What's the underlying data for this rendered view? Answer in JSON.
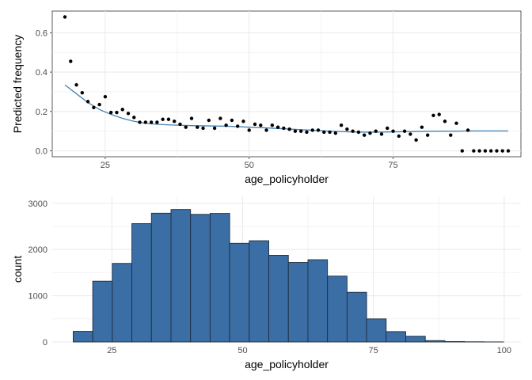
{
  "chart_data": [
    {
      "type": "scatter",
      "xlabel": "age_policyholder",
      "ylabel": "Predicted frequency",
      "xlim": [
        15.8,
        97.2
      ],
      "ylim": [
        -0.03,
        0.71
      ],
      "xticks": [
        25,
        50,
        75
      ],
      "yticks": [
        0.0,
        0.2,
        0.4,
        0.6
      ],
      "grid": true,
      "panel_border": true,
      "colors": {
        "points": "#000000",
        "trend": "#4682b4",
        "grid": "#ebebeb"
      },
      "points": {
        "x": [
          18,
          19,
          20,
          21,
          22,
          23,
          24,
          25,
          26,
          27,
          28,
          29,
          30,
          31,
          32,
          33,
          34,
          35,
          36,
          37,
          38,
          39,
          40,
          41,
          42,
          43,
          44,
          45,
          46,
          47,
          48,
          49,
          50,
          51,
          52,
          53,
          54,
          55,
          56,
          57,
          58,
          59,
          60,
          61,
          62,
          63,
          64,
          65,
          66,
          67,
          68,
          69,
          70,
          71,
          72,
          73,
          74,
          75,
          76,
          77,
          78,
          79,
          80,
          81,
          82,
          83,
          84,
          85,
          86,
          87,
          88,
          89,
          90,
          91,
          92,
          93,
          94,
          95
        ],
        "y": [
          0.68,
          0.455,
          0.335,
          0.295,
          0.25,
          0.22,
          0.235,
          0.275,
          0.195,
          0.195,
          0.21,
          0.19,
          0.17,
          0.145,
          0.145,
          0.145,
          0.145,
          0.16,
          0.16,
          0.15,
          0.135,
          0.12,
          0.165,
          0.12,
          0.115,
          0.155,
          0.115,
          0.165,
          0.13,
          0.155,
          0.125,
          0.15,
          0.105,
          0.135,
          0.13,
          0.105,
          0.13,
          0.12,
          0.115,
          0.11,
          0.1,
          0.1,
          0.095,
          0.105,
          0.105,
          0.095,
          0.095,
          0.09,
          0.13,
          0.11,
          0.1,
          0.095,
          0.08,
          0.09,
          0.1,
          0.085,
          0.115,
          0.1,
          0.075,
          0.1,
          0.085,
          0.055,
          0.12,
          0.08,
          0.18,
          0.185,
          0.15,
          0.08,
          0.14,
          0.0,
          0.105,
          0.0,
          0.0,
          0.0,
          0.0,
          0.0,
          0.0,
          0.0
        ]
      },
      "trend": {
        "x": [
          18,
          20,
          22,
          24,
          26,
          28,
          30,
          32,
          34,
          36,
          38,
          40,
          42,
          44,
          46,
          48,
          50,
          52,
          54,
          56,
          58,
          60,
          62,
          64,
          66,
          68,
          70,
          72,
          74,
          76,
          78,
          80,
          82,
          84,
          86,
          88,
          90,
          92,
          94,
          95
        ],
        "y": [
          0.335,
          0.29,
          0.245,
          0.21,
          0.185,
          0.165,
          0.15,
          0.14,
          0.135,
          0.132,
          0.13,
          0.128,
          0.127,
          0.126,
          0.125,
          0.123,
          0.12,
          0.118,
          0.115,
          0.112,
          0.109,
          0.106,
          0.103,
          0.1,
          0.098,
          0.096,
          0.095,
          0.095,
          0.096,
          0.097,
          0.098,
          0.099,
          0.1,
          0.1,
          0.1,
          0.101,
          0.101,
          0.101,
          0.101,
          0.101
        ]
      }
    },
    {
      "type": "bar",
      "xlabel": "age_policyholder",
      "ylabel": "count",
      "xlim": [
        13.6,
        103.2
      ],
      "ylim": [
        0,
        3150
      ],
      "xticks": [
        25,
        50,
        75,
        100
      ],
      "yticks": [
        0,
        1000,
        2000,
        3000
      ],
      "grid": true,
      "panel_border": false,
      "colors": {
        "fill": "#3b6ea5",
        "outline": "#1f2e40",
        "grid": "#ebebeb"
      },
      "bin_width": 3.74,
      "bins": {
        "start": [
          17.6,
          21.34,
          25.08,
          28.82,
          32.56,
          36.3,
          40.04,
          43.78,
          47.52,
          51.26,
          55.0,
          58.74,
          62.48,
          66.22,
          69.96,
          73.7,
          77.44,
          81.18,
          84.92,
          88.66,
          92.4,
          96.14
        ],
        "count": [
          230,
          1315,
          1700,
          2560,
          2785,
          2865,
          2760,
          2780,
          2135,
          2190,
          1875,
          1720,
          1780,
          1425,
          1075,
          500,
          225,
          125,
          30,
          10,
          5,
          2
        ]
      }
    }
  ]
}
